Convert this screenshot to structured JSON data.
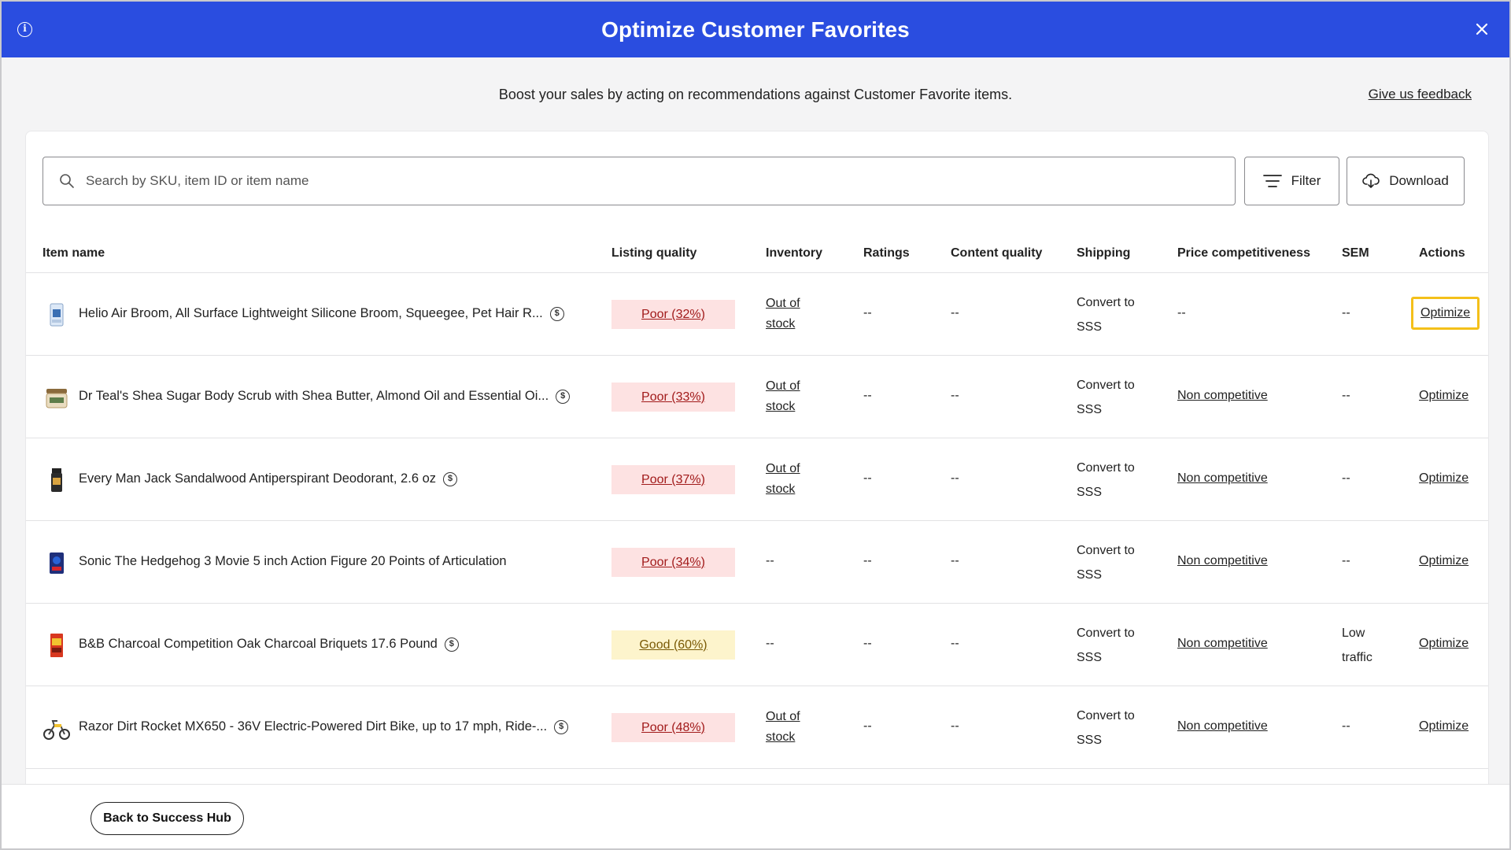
{
  "header": {
    "title": "Optimize Customer Favorites",
    "info_icon": "info-icon",
    "close_icon": "close-icon"
  },
  "intro": {
    "text": "Boost your sales by acting on recommendations against Customer Favorite items.",
    "feedback": "Give us feedback"
  },
  "toolbar": {
    "search_placeholder": "Search by SKU, item ID or item name",
    "filter_label": "Filter",
    "download_label": "Download"
  },
  "columns": {
    "item_name": "Item name",
    "listing_quality": "Listing quality",
    "inventory": "Inventory",
    "ratings": "Ratings",
    "content_quality": "Content quality",
    "shipping": "Shipping",
    "price": "Price competitiveness",
    "sem": "SEM",
    "actions": "Actions"
  },
  "rows": [
    {
      "name": "Helio Air Broom, All Surface Lightweight Silicone Broom, Squeegee, Pet Hair R...",
      "dollar": true,
      "quality": "Poor (32%)",
      "quality_level": "poor",
      "inventory_1": "Out of",
      "inventory_2": "stock",
      "ratings": "--",
      "content": "--",
      "shipping_1": "Convert to",
      "shipping_2": "SSS",
      "price": "--",
      "sem_1": "--",
      "sem_2": "",
      "action": "Optimize"
    },
    {
      "name": "Dr Teal's Shea Sugar Body Scrub with Shea Butter, Almond Oil and Essential Oi...",
      "dollar": true,
      "quality": "Poor (33%)",
      "quality_level": "poor",
      "inventory_1": "Out of",
      "inventory_2": "stock",
      "ratings": "--",
      "content": "--",
      "shipping_1": "Convert to",
      "shipping_2": "SSS",
      "price": "Non competitive",
      "sem_1": "--",
      "sem_2": "",
      "action": "Optimize"
    },
    {
      "name": "Every Man Jack Sandalwood Antiperspirant Deodorant, 2.6 oz",
      "dollar": true,
      "quality": "Poor (37%)",
      "quality_level": "poor",
      "inventory_1": "Out of",
      "inventory_2": "stock",
      "ratings": "--",
      "content": "--",
      "shipping_1": "Convert to",
      "shipping_2": "SSS",
      "price": "Non competitive",
      "sem_1": "--",
      "sem_2": "",
      "action": "Optimize"
    },
    {
      "name": "Sonic The Hedgehog 3 Movie 5 inch Action Figure 20 Points of Articulation",
      "dollar": false,
      "quality": "Poor (34%)",
      "quality_level": "poor",
      "inventory_1": "--",
      "inventory_2": "",
      "ratings": "--",
      "content": "--",
      "shipping_1": "Convert to",
      "shipping_2": "SSS",
      "price": "Non competitive",
      "sem_1": "--",
      "sem_2": "",
      "action": "Optimize"
    },
    {
      "name": "B&B Charcoal Competition Oak Charcoal Briquets 17.6 Pound",
      "dollar": true,
      "quality": "Good (60%)",
      "quality_level": "good",
      "inventory_1": "--",
      "inventory_2": "",
      "ratings": "--",
      "content": "--",
      "shipping_1": "Convert to",
      "shipping_2": "SSS",
      "price": "Non competitive",
      "sem_1": "Low",
      "sem_2": "traffic",
      "action": "Optimize"
    },
    {
      "name": "Razor Dirt Rocket MX650 - 36V Electric-Powered Dirt Bike, up to 17 mph, Ride-...",
      "dollar": true,
      "quality": "Poor (48%)",
      "quality_level": "poor",
      "inventory_1": "Out of",
      "inventory_2": "stock",
      "ratings": "--",
      "content": "--",
      "shipping_1": "Convert to",
      "shipping_2": "SSS",
      "price": "Non competitive",
      "sem_1": "--",
      "sem_2": "",
      "action": "Optimize"
    }
  ],
  "footer": {
    "back_label": "Back to Success Hub"
  },
  "colors": {
    "header_bg": "#2a4de0",
    "poor_bg": "#fde2e2",
    "poor_text": "#a11a1a",
    "good_bg": "#fdf4cc",
    "good_text": "#7a5a05",
    "focus_ring": "#f4c01a"
  }
}
